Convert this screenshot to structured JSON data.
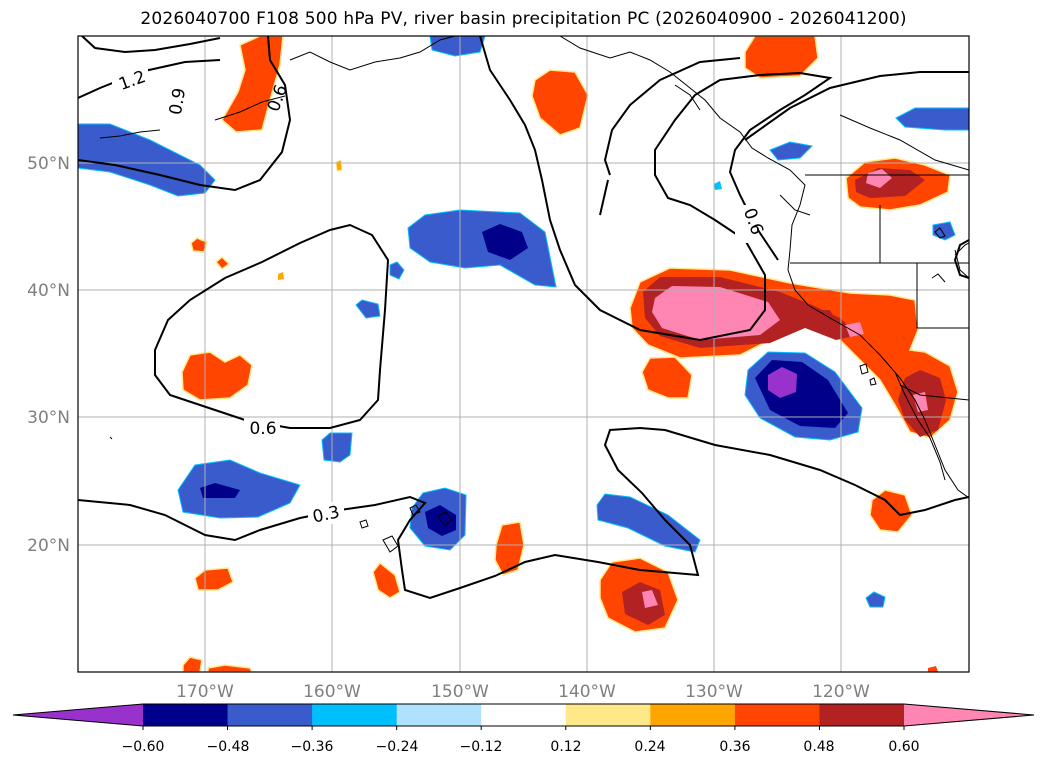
{
  "title": "2026040700 F108 500 hPa PV, river basin precipitation PC (2026040900 - 2026041200)",
  "map": {
    "longitude_labels": [
      "170°W",
      "160°W",
      "150°W",
      "140°W",
      "130°W",
      "120°W"
    ],
    "latitude_labels": [
      "50°N",
      "40°N",
      "30°N",
      "20°N"
    ],
    "contour_labels": [
      "1.2",
      "0.9",
      "0.6",
      "0.6",
      "0.6",
      "0.3"
    ]
  },
  "colorbar": {
    "ticks": [
      "−0.60",
      "−0.48",
      "−0.36",
      "−0.24",
      "−0.12",
      "0.12",
      "0.24",
      "0.36",
      "0.48",
      "0.60"
    ],
    "colors": [
      "#9932cc",
      "#00008b",
      "#3a5bcc",
      "#00bfff",
      "#b0e2ff",
      "#ffffff",
      "#ffe88a",
      "#ffa500",
      "#ff4500",
      "#b22222",
      "#ff85b2"
    ]
  }
}
